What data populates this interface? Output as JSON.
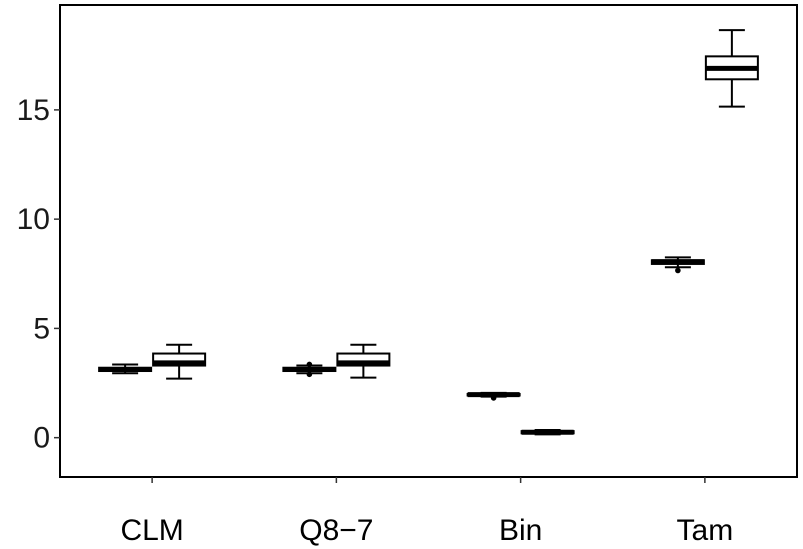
{
  "chart_data": {
    "type": "boxplot",
    "title": "",
    "xlabel": "",
    "ylabel": "",
    "ylim": [
      -1.8,
      19.8
    ],
    "yticks": [
      0,
      5,
      10,
      15
    ],
    "grid": false,
    "legend": "none",
    "categories": [
      "CLM",
      "Q8−7",
      "Bin",
      "Tam"
    ],
    "boxes": [
      {
        "category": "CLM",
        "slot": 0,
        "min": 2.95,
        "q1": 3.05,
        "median": 3.12,
        "q3": 3.2,
        "max": 3.35,
        "outliers": []
      },
      {
        "category": "CLM",
        "slot": 1,
        "min": 2.7,
        "q1": 3.3,
        "median": 3.42,
        "q3": 3.85,
        "max": 4.25,
        "outliers": []
      },
      {
        "category": "Q8−7",
        "slot": 0,
        "min": 2.95,
        "q1": 3.05,
        "median": 3.12,
        "q3": 3.2,
        "max": 3.3,
        "outliers": [
          2.9,
          3.35
        ]
      },
      {
        "category": "Q8−7",
        "slot": 1,
        "min": 2.75,
        "q1": 3.3,
        "median": 3.42,
        "q3": 3.85,
        "max": 4.25,
        "outliers": []
      },
      {
        "category": "Bin",
        "slot": 0,
        "min": 1.88,
        "q1": 1.93,
        "median": 1.97,
        "q3": 2.0,
        "max": 2.05,
        "outliers": [
          1.82
        ]
      },
      {
        "category": "Bin",
        "slot": 1,
        "min": 0.15,
        "q1": 0.2,
        "median": 0.25,
        "q3": 0.3,
        "max": 0.35,
        "outliers": []
      },
      {
        "category": "Tam",
        "slot": 0,
        "min": 7.8,
        "q1": 7.95,
        "median": 8.05,
        "q3": 8.12,
        "max": 8.25,
        "outliers": [
          7.65
        ]
      },
      {
        "category": "Tam",
        "slot": 1,
        "min": 15.15,
        "q1": 16.4,
        "median": 16.9,
        "q3": 17.45,
        "max": 18.65,
        "outliers": []
      }
    ]
  }
}
